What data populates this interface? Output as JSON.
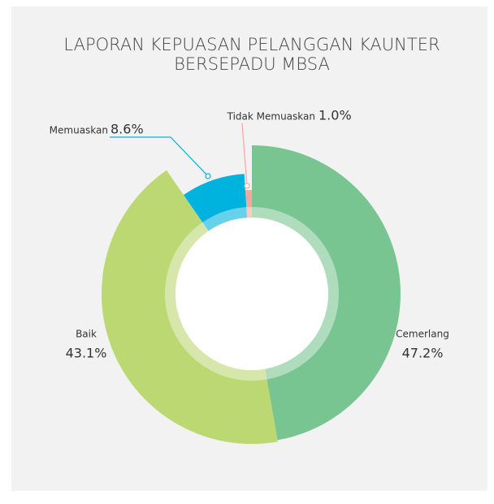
{
  "chart_data": {
    "type": "pie",
    "title": [
      "LAPORAN KEPUASAN PELANGGAN KAUNTER",
      "BERSEPADU MBSA"
    ],
    "categories": [
      "Cemerlang",
      "Baik",
      "Memuaskan",
      "Tidak Memuaskan"
    ],
    "values": [
      47.2,
      43.1,
      8.6,
      1.0
    ],
    "value_labels": [
      "47.2%",
      "43.1%",
      "8.6%",
      "1.0%"
    ],
    "colors": [
      "#78c592",
      "#bcd873",
      "#00b3de",
      "#f3a89b"
    ]
  }
}
